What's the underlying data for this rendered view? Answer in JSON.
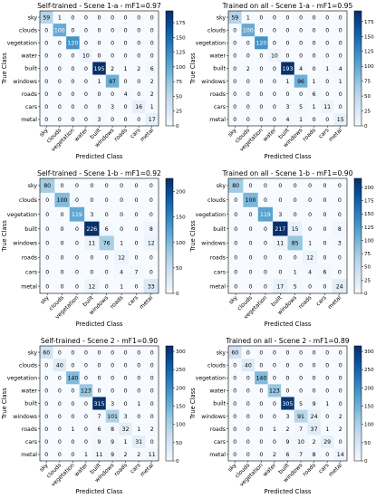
{
  "chart_data": [
    {
      "type": "heatmap",
      "title": "Self-trained - Scene 1-a - mF1=0.97",
      "xlabel": "Predicted Class",
      "ylabel": "True Class",
      "classes": [
        "sky",
        "clouds",
        "vegetation",
        "water",
        "built",
        "windows",
        "roads",
        "cars",
        "metal"
      ],
      "matrix": [
        [
          59,
          1,
          0,
          0,
          0,
          0,
          0,
          0,
          0
        ],
        [
          0,
          100,
          0,
          0,
          0,
          0,
          0,
          0,
          0
        ],
        [
          0,
          0,
          120,
          0,
          0,
          0,
          0,
          0,
          0
        ],
        [
          0,
          0,
          0,
          10,
          0,
          0,
          0,
          0,
          0
        ],
        [
          0,
          0,
          0,
          0,
          195,
          2,
          1,
          2,
          6
        ],
        [
          0,
          0,
          0,
          0,
          1,
          97,
          0,
          0,
          2
        ],
        [
          0,
          0,
          0,
          0,
          0,
          0,
          4,
          0,
          2
        ],
        [
          0,
          0,
          0,
          0,
          0,
          3,
          0,
          16,
          1
        ],
        [
          0,
          0,
          0,
          0,
          3,
          0,
          0,
          0,
          17
        ]
      ],
      "colorbar_ticks": [
        0,
        25,
        50,
        75,
        100,
        125,
        150,
        175
      ],
      "vmax": 195
    },
    {
      "type": "heatmap",
      "title": "Trained on all - Scene 1-a - mF1=0.95",
      "xlabel": "Predicted Class",
      "ylabel": "True Class",
      "classes": [
        "sky",
        "clouds",
        "vegetation",
        "water",
        "built",
        "windows",
        "roads",
        "cars",
        "metal"
      ],
      "matrix": [
        [
          59,
          1,
          0,
          0,
          0,
          0,
          0,
          0,
          0
        ],
        [
          0,
          100,
          0,
          0,
          0,
          0,
          0,
          0,
          0
        ],
        [
          0,
          0,
          120,
          0,
          0,
          0,
          0,
          0,
          0
        ],
        [
          0,
          0,
          0,
          10,
          0,
          0,
          0,
          0,
          0
        ],
        [
          0,
          2,
          0,
          0,
          193,
          4,
          0,
          1,
          4
        ],
        [
          0,
          0,
          0,
          0,
          1,
          96,
          1,
          0,
          1
        ],
        [
          0,
          0,
          0,
          0,
          0,
          0,
          6,
          0,
          0
        ],
        [
          0,
          0,
          0,
          0,
          3,
          5,
          1,
          11,
          0
        ],
        [
          0,
          0,
          0,
          0,
          4,
          1,
          0,
          0,
          15
        ]
      ],
      "colorbar_ticks": [
        0,
        25,
        50,
        75,
        100,
        125,
        150,
        175
      ],
      "vmax": 193
    },
    {
      "type": "heatmap",
      "title": "Self-trained - Scene 1-b - mF1=0.92",
      "xlabel": "Predicted Class",
      "ylabel": "True Class",
      "classes": [
        "sky",
        "clouds",
        "vegetation",
        "built",
        "windows",
        "roads",
        "cars",
        "metal"
      ],
      "matrix": [
        [
          80,
          0,
          0,
          0,
          0,
          0,
          0,
          0
        ],
        [
          0,
          100,
          0,
          0,
          0,
          0,
          0,
          0
        ],
        [
          0,
          0,
          119,
          3,
          0,
          0,
          0,
          0
        ],
        [
          0,
          0,
          0,
          226,
          6,
          0,
          0,
          8
        ],
        [
          0,
          0,
          0,
          11,
          76,
          1,
          0,
          12
        ],
        [
          0,
          0,
          0,
          0,
          0,
          12,
          0,
          0
        ],
        [
          0,
          0,
          0,
          0,
          0,
          4,
          7,
          0
        ],
        [
          0,
          0,
          0,
          12,
          0,
          1,
          0,
          33
        ]
      ],
      "colorbar_ticks": [
        0,
        50,
        100,
        150,
        200
      ],
      "vmax": 226
    },
    {
      "type": "heatmap",
      "title": "Trained on all - Scene 1-b - mF1=0.90",
      "xlabel": "Predicted Class",
      "ylabel": "True Class",
      "classes": [
        "sky",
        "clouds",
        "vegetation",
        "built",
        "windows",
        "roads",
        "cars",
        "metal"
      ],
      "matrix": [
        [
          80,
          0,
          0,
          0,
          0,
          0,
          0,
          0
        ],
        [
          0,
          100,
          0,
          0,
          0,
          0,
          0,
          0
        ],
        [
          0,
          0,
          119,
          3,
          0,
          0,
          0,
          0
        ],
        [
          0,
          0,
          0,
          217,
          15,
          0,
          0,
          8
        ],
        [
          0,
          0,
          0,
          11,
          85,
          1,
          0,
          3
        ],
        [
          0,
          0,
          0,
          0,
          0,
          12,
          0,
          0
        ],
        [
          0,
          0,
          0,
          0,
          1,
          4,
          6,
          0
        ],
        [
          0,
          0,
          0,
          17,
          5,
          0,
          0,
          24
        ]
      ],
      "colorbar_ticks": [
        0,
        25,
        50,
        75,
        100,
        125,
        150,
        175,
        200
      ],
      "vmax": 217
    },
    {
      "type": "heatmap",
      "title": "Self-trained - Scene 2 - mF1=0.90",
      "xlabel": "Predicted Class",
      "ylabel": "True Class",
      "classes": [
        "sky",
        "clouds",
        "vegetation",
        "water",
        "built",
        "windows",
        "roads",
        "cars",
        "metal"
      ],
      "matrix": [
        [
          60,
          0,
          0,
          0,
          0,
          0,
          0,
          0,
          0
        ],
        [
          0,
          40,
          0,
          0,
          0,
          0,
          0,
          0,
          0
        ],
        [
          0,
          0,
          140,
          0,
          0,
          0,
          0,
          0,
          0
        ],
        [
          0,
          0,
          0,
          123,
          0,
          0,
          0,
          0,
          0
        ],
        [
          0,
          0,
          0,
          0,
          315,
          3,
          0,
          1,
          0
        ],
        [
          0,
          0,
          0,
          0,
          7,
          101,
          3,
          0,
          0
        ],
        [
          0,
          0,
          1,
          0,
          6,
          8,
          32,
          1,
          2
        ],
        [
          0,
          0,
          0,
          0,
          9,
          9,
          1,
          31,
          0
        ],
        [
          0,
          0,
          0,
          1,
          11,
          9,
          2,
          2,
          11
        ]
      ],
      "colorbar_ticks": [
        0,
        50,
        100,
        150,
        200,
        250,
        300
      ],
      "vmax": 315
    },
    {
      "type": "heatmap",
      "title": "Trained on all - Scene 2 - mF1=0.89",
      "xlabel": "Predicted Class",
      "ylabel": "True Class",
      "classes": [
        "sky",
        "clouds",
        "vegetation",
        "water",
        "built",
        "windows",
        "roads",
        "cars",
        "metal"
      ],
      "matrix": [
        [
          60,
          0,
          0,
          0,
          0,
          0,
          0,
          0,
          0
        ],
        [
          0,
          40,
          0,
          0,
          0,
          0,
          0,
          0,
          0
        ],
        [
          0,
          0,
          140,
          0,
          0,
          0,
          0,
          0,
          0
        ],
        [
          0,
          0,
          0,
          123,
          0,
          0,
          0,
          0,
          0
        ],
        [
          0,
          0,
          0,
          0,
          305,
          5,
          9,
          1,
          0
        ],
        [
          0,
          0,
          0,
          0,
          3,
          91,
          24,
          0,
          2
        ],
        [
          0,
          0,
          0,
          1,
          2,
          7,
          37,
          1,
          2
        ],
        [
          0,
          0,
          0,
          0,
          9,
          10,
          2,
          29,
          0
        ],
        [
          0,
          0,
          0,
          2,
          6,
          7,
          8,
          0,
          14
        ]
      ],
      "colorbar_ticks": [
        0,
        50,
        100,
        150,
        200,
        250,
        300
      ],
      "vmax": 315
    }
  ]
}
